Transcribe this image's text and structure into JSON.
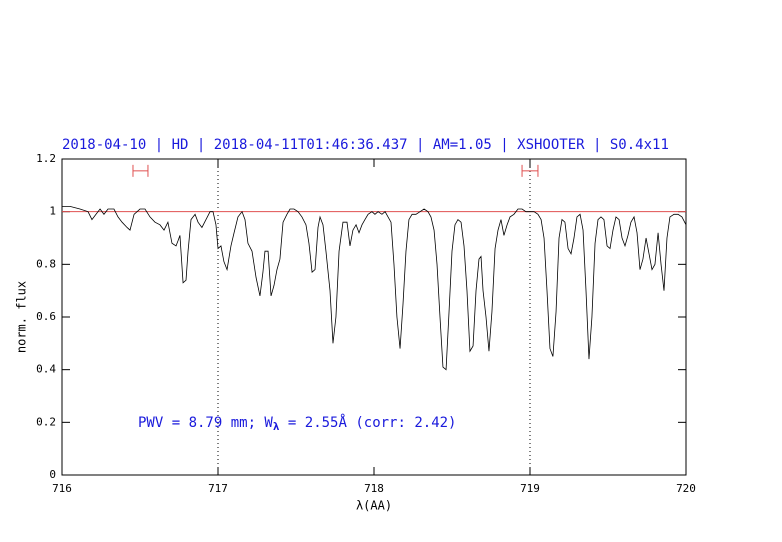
{
  "chart_data": {
    "type": "line",
    "title": "2018-04-10 | HD | 2018-04-11T01:46:36.437 | AM=1.05 | XSHOOTER | S0.4x11",
    "annotation": [
      "PWV = 8.79 mm; W",
      "λ",
      " = 2.55Å (corr: 2.42)"
    ],
    "x_label": "λ(AA)",
    "y_label": "norm. flux",
    "xlim": [
      716,
      720
    ],
    "ylim": [
      0,
      1.2
    ],
    "xticks": [
      716,
      717,
      718,
      719,
      720
    ],
    "yticks": [
      0,
      0.2,
      0.4,
      0.6,
      0.8,
      1,
      1.2
    ],
    "reference_y": 1,
    "reference_color": "#e05050",
    "vlines": [
      717,
      719
    ],
    "windows": [
      {
        "x": [
          716.455,
          716.551
        ],
        "y": 1.155
      },
      {
        "x": [
          718.949,
          719.051
        ],
        "y": 1.155
      }
    ],
    "window_color": "#e05050",
    "x": [
      716.0,
      716.051,
      716.115,
      716.167,
      716.192,
      716.218,
      716.244,
      716.269,
      716.295,
      716.333,
      716.359,
      716.385,
      716.417,
      716.436,
      716.462,
      716.5,
      716.532,
      716.564,
      716.596,
      716.628,
      716.654,
      716.679,
      716.705,
      716.731,
      716.744,
      716.756,
      716.776,
      716.795,
      716.808,
      716.827,
      716.853,
      716.872,
      716.897,
      716.923,
      716.949,
      716.968,
      716.987,
      717.0,
      717.019,
      717.038,
      717.058,
      717.083,
      717.103,
      717.128,
      717.154,
      717.173,
      717.192,
      717.218,
      717.244,
      717.269,
      717.288,
      717.301,
      717.321,
      717.34,
      717.359,
      717.378,
      717.397,
      717.417,
      717.442,
      717.462,
      717.487,
      717.513,
      717.538,
      717.564,
      717.583,
      717.603,
      717.622,
      717.641,
      717.654,
      717.673,
      717.692,
      717.718,
      717.737,
      717.756,
      717.776,
      717.801,
      717.827,
      717.846,
      717.865,
      717.885,
      717.904,
      717.923,
      717.942,
      717.962,
      717.987,
      718.006,
      718.026,
      718.051,
      718.071,
      718.09,
      718.109,
      718.128,
      718.147,
      718.167,
      718.186,
      718.205,
      718.224,
      718.244,
      718.269,
      718.295,
      718.321,
      718.346,
      718.365,
      718.385,
      718.404,
      718.423,
      718.442,
      718.462,
      718.481,
      718.5,
      718.519,
      718.538,
      718.558,
      718.577,
      718.596,
      718.615,
      718.635,
      718.654,
      718.673,
      718.686,
      718.699,
      718.718,
      718.737,
      718.756,
      718.776,
      718.795,
      718.814,
      718.833,
      718.853,
      718.872,
      718.897,
      718.923,
      718.949,
      718.974,
      719.0,
      719.026,
      719.051,
      719.071,
      719.09,
      719.109,
      719.128,
      719.147,
      719.167,
      719.186,
      719.205,
      719.224,
      719.244,
      719.263,
      719.282,
      719.301,
      719.321,
      719.34,
      719.359,
      719.378,
      719.397,
      719.417,
      719.436,
      719.455,
      719.474,
      719.494,
      719.513,
      719.532,
      719.551,
      719.571,
      719.59,
      719.609,
      719.628,
      719.647,
      719.667,
      719.686,
      719.705,
      719.724,
      719.744,
      719.763,
      719.782,
      719.801,
      719.821,
      719.84,
      719.859,
      719.878,
      719.897,
      719.923,
      719.949,
      719.974,
      720.0
    ],
    "series": [
      {
        "color": "#000000",
        "values": [
          1.02,
          1.02,
          1.01,
          1.0,
          0.97,
          0.99,
          1.01,
          0.99,
          1.01,
          1.01,
          0.98,
          0.96,
          0.94,
          0.93,
          0.99,
          1.01,
          1.01,
          0.98,
          0.96,
          0.95,
          0.93,
          0.96,
          0.88,
          0.87,
          0.89,
          0.91,
          0.73,
          0.74,
          0.85,
          0.97,
          0.99,
          0.96,
          0.94,
          0.97,
          1.0,
          1.0,
          0.95,
          0.86,
          0.87,
          0.81,
          0.78,
          0.87,
          0.92,
          0.98,
          1.0,
          0.97,
          0.88,
          0.85,
          0.75,
          0.68,
          0.77,
          0.85,
          0.85,
          0.68,
          0.72,
          0.78,
          0.82,
          0.96,
          0.99,
          1.01,
          1.01,
          1.0,
          0.98,
          0.95,
          0.88,
          0.77,
          0.78,
          0.94,
          0.98,
          0.95,
          0.85,
          0.7,
          0.5,
          0.6,
          0.85,
          0.96,
          0.96,
          0.87,
          0.93,
          0.95,
          0.92,
          0.95,
          0.97,
          0.99,
          1.0,
          0.99,
          1.0,
          0.99,
          1.0,
          0.98,
          0.96,
          0.8,
          0.6,
          0.48,
          0.65,
          0.85,
          0.97,
          0.99,
          0.99,
          1.0,
          1.01,
          1.0,
          0.98,
          0.93,
          0.8,
          0.6,
          0.41,
          0.4,
          0.62,
          0.85,
          0.95,
          0.97,
          0.96,
          0.87,
          0.7,
          0.47,
          0.49,
          0.7,
          0.82,
          0.83,
          0.7,
          0.6,
          0.47,
          0.62,
          0.86,
          0.93,
          0.97,
          0.91,
          0.95,
          0.98,
          0.99,
          1.01,
          1.01,
          1.0,
          1.0,
          1.0,
          0.99,
          0.97,
          0.9,
          0.7,
          0.48,
          0.45,
          0.62,
          0.9,
          0.97,
          0.96,
          0.86,
          0.84,
          0.9,
          0.98,
          0.99,
          0.93,
          0.7,
          0.44,
          0.6,
          0.88,
          0.97,
          0.98,
          0.97,
          0.87,
          0.86,
          0.93,
          0.98,
          0.97,
          0.9,
          0.87,
          0.91,
          0.96,
          0.98,
          0.92,
          0.78,
          0.82,
          0.9,
          0.84,
          0.78,
          0.8,
          0.92,
          0.8,
          0.7,
          0.9,
          0.98,
          0.99,
          0.99,
          0.98,
          0.95
        ]
      }
    ]
  }
}
